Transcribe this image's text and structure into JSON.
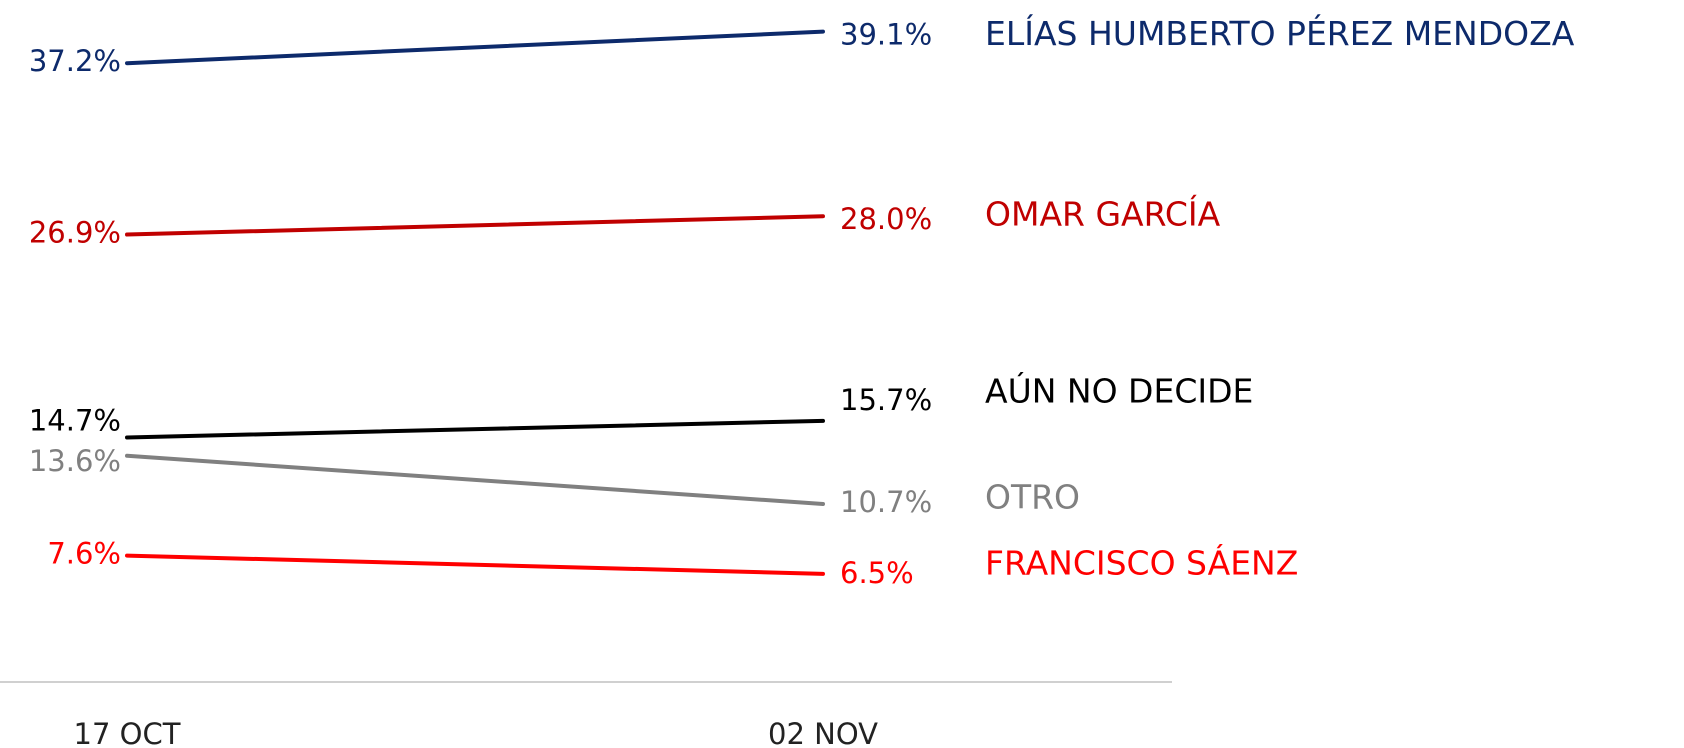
{
  "chart_data": {
    "type": "line",
    "categories": [
      "17 OCT",
      "02 NOV"
    ],
    "ylim": [
      0,
      41
    ],
    "series": [
      {
        "name": "ELÍAS HUMBERTO PÉREZ MENDOZA",
        "color": "#0d2a6b",
        "values": [
          37.2,
          39.1
        ],
        "value_labels": [
          "37.2%",
          "39.1%"
        ]
      },
      {
        "name": "OMAR GARCÍA",
        "color": "#c00000",
        "values": [
          26.9,
          28.0
        ],
        "value_labels": [
          "26.9%",
          "28.0%"
        ]
      },
      {
        "name": "AÚN NO DECIDE",
        "color": "#000000",
        "values": [
          14.7,
          15.7
        ],
        "value_labels": [
          "14.7%",
          "15.7%"
        ]
      },
      {
        "name": "OTRO",
        "color": "#808080",
        "values": [
          13.6,
          10.7
        ],
        "value_labels": [
          "13.6%",
          "10.7%"
        ]
      },
      {
        "name": "FRANCISCO SÁENZ",
        "color": "#ff0000",
        "values": [
          7.6,
          6.5
        ],
        "value_labels": [
          "7.6%",
          "6.5%"
        ]
      }
    ]
  }
}
